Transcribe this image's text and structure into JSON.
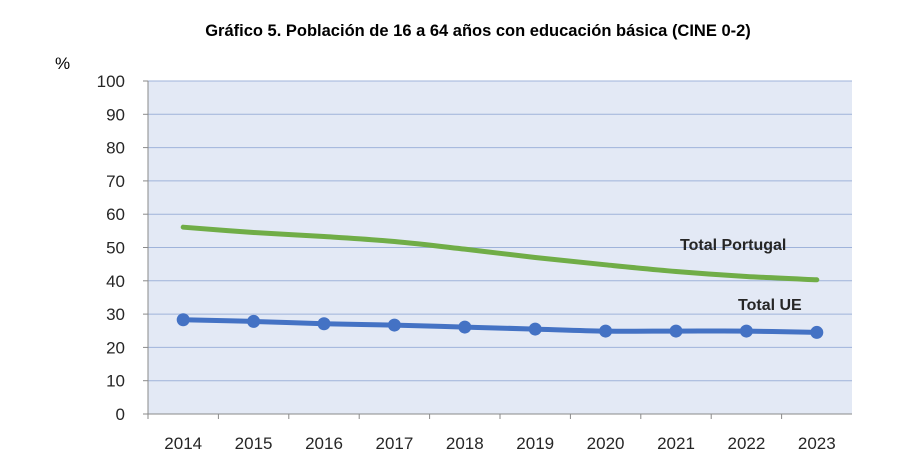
{
  "chart_data": {
    "type": "line",
    "title": "Gráfico 5. Población de 16 a 64 años con educación básica (CINE 0-2)",
    "ylabel": "%",
    "xlabel": "",
    "ylim": [
      0,
      100
    ],
    "yticks": [
      0,
      10,
      20,
      30,
      40,
      50,
      60,
      70,
      80,
      90,
      100
    ],
    "grid": true,
    "categories": [
      "2014",
      "2015",
      "2016",
      "2017",
      "2018",
      "2019",
      "2020",
      "2021",
      "2022",
      "2023"
    ],
    "series": [
      {
        "name": "Total Portugal",
        "color": "#70ad47",
        "markers": false,
        "values": [
          56.1,
          54.5,
          53.3,
          51.8,
          49.5,
          47.0,
          44.8,
          42.8,
          41.3,
          40.3
        ]
      },
      {
        "name": "Total UE",
        "color": "#4472c4",
        "markers": true,
        "values": [
          28.3,
          27.8,
          27.1,
          26.7,
          26.1,
          25.5,
          24.9,
          24.9,
          24.9,
          24.5
        ]
      }
    ]
  }
}
